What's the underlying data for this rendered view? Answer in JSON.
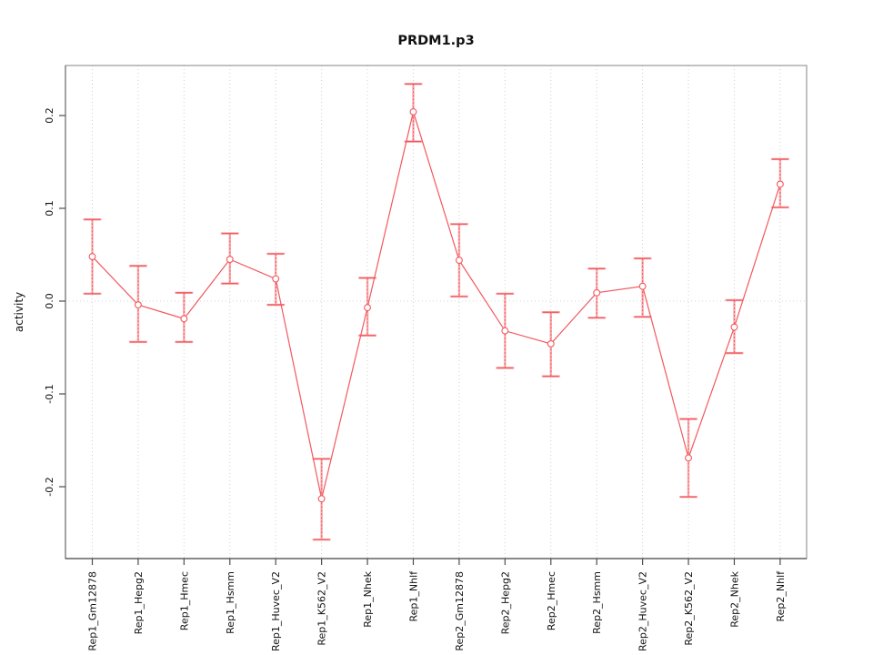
{
  "figure": {
    "background": "#ffffff",
    "colors": {
      "series": "#f2585e",
      "series_light": "#f9aeb0",
      "grid": "#cfcfcf",
      "zero_line": "#d4d4d4",
      "box": "#999999",
      "axis": "#4d4d4d",
      "text": "#111111"
    }
  },
  "chart_data": {
    "type": "line",
    "title": "PRDM1.p3",
    "xlabel": "",
    "ylabel": "activity",
    "legend_position": "none",
    "grid": "dotted vertical gridline at each category; dotted horizontal line at y=0",
    "marker": "open-circle",
    "error_bars": true,
    "ylim": [
      -0.278,
      0.254
    ],
    "ytick_values": [
      0.2,
      0.1,
      0.0,
      -0.1,
      -0.2
    ],
    "ytick_labels": [
      "0.2",
      "0.1",
      "0.0",
      "-0.1",
      "-0.2"
    ],
    "categories": [
      "Rep1_Gm12878",
      "Rep1_Hepg2",
      "Rep1_Hmec",
      "Rep1_Hsmm",
      "Rep1_Huvec_V2",
      "Rep1_K562_V2",
      "Rep1_Nhek",
      "Rep1_Nhlf",
      "Rep2_Gm12878",
      "Rep2_Hepg2",
      "Rep2_Hmec",
      "Rep2_Hsmm",
      "Rep2_Huvec_V2",
      "Rep2_K562_V2",
      "Rep2_Nhek",
      "Rep2_Nhlf"
    ],
    "series": [
      {
        "name": "activity",
        "values": [
          0.048,
          -0.004,
          -0.019,
          0.045,
          0.024,
          -0.213,
          -0.007,
          0.204,
          0.044,
          -0.032,
          -0.046,
          0.009,
          0.016,
          -0.169,
          -0.028,
          0.126
        ],
        "error_low": [
          0.008,
          -0.044,
          -0.044,
          0.019,
          -0.004,
          -0.257,
          -0.037,
          0.172,
          0.005,
          -0.072,
          -0.081,
          -0.018,
          -0.017,
          -0.211,
          -0.056,
          0.101
        ],
        "error_high": [
          0.088,
          0.038,
          0.009,
          0.073,
          0.051,
          -0.17,
          0.025,
          0.234,
          0.083,
          0.008,
          -0.012,
          0.035,
          0.046,
          -0.127,
          0.001,
          0.153
        ]
      }
    ]
  }
}
